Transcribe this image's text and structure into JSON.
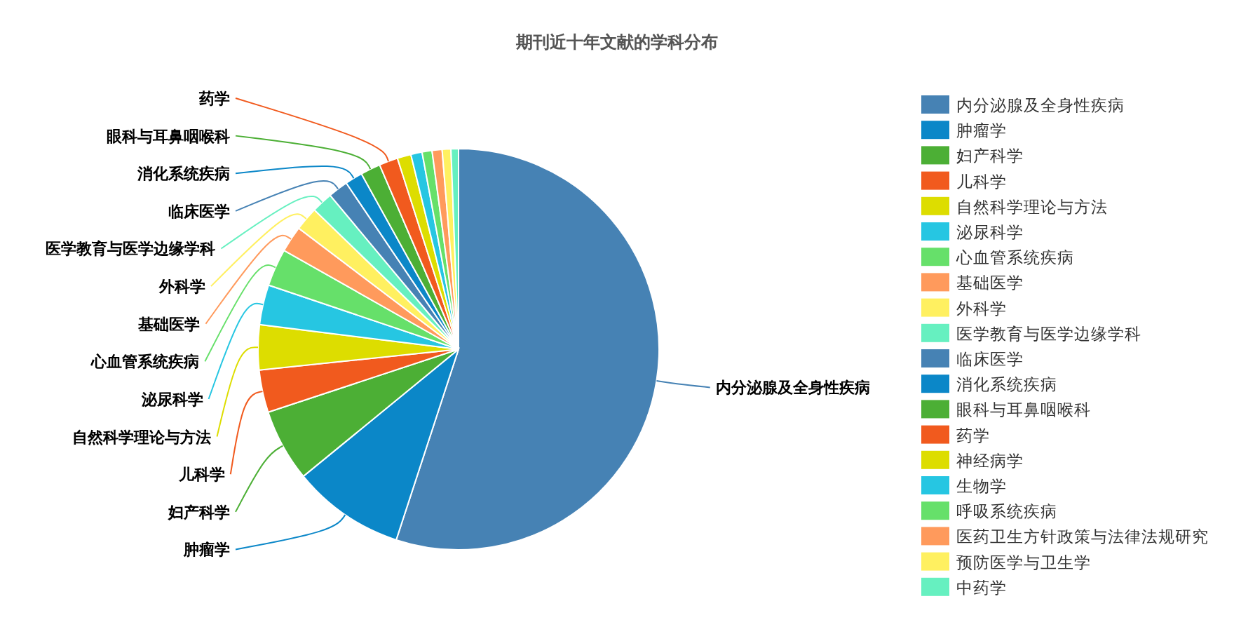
{
  "chart_data": {
    "type": "pie",
    "title": "期刊近十年文献的学科分布",
    "categories": [
      "内分泌腺及全身性疾病",
      "肿瘤学",
      "妇产科学",
      "儿科学",
      "自然科学理论与方法",
      "泌尿科学",
      "心血管系统疾病",
      "基础医学",
      "外科学",
      "医学教育与医学边缘学科",
      "临床医学",
      "消化系统疾病",
      "眼科与耳鼻咽喉科",
      "药学",
      "神经病学",
      "生物学",
      "呼吸系统疾病",
      "医药卫生方针政策与法律法规研究",
      "预防医学与卫生学",
      "中药学"
    ],
    "values": [
      54.7,
      9.0,
      5.8,
      3.4,
      3.6,
      3.2,
      3.0,
      2.1,
      1.9,
      1.7,
      1.6,
      1.4,
      1.6,
      1.5,
      1.1,
      0.9,
      0.8,
      0.8,
      0.7,
      0.6
    ],
    "colors": [
      "#4682b4",
      "#0b87c8",
      "#4caf35",
      "#f15a1e",
      "#dddd00",
      "#26c6e2",
      "#66e06a",
      "#ff9a5c",
      "#fff060",
      "#66f0c0",
      "#4682b4",
      "#0b87c8",
      "#4caf35",
      "#f15a1e",
      "#dddd00",
      "#26c6e2",
      "#66e06a",
      "#ff9a5c",
      "#fff060",
      "#66f0c0"
    ],
    "legend": "right"
  }
}
